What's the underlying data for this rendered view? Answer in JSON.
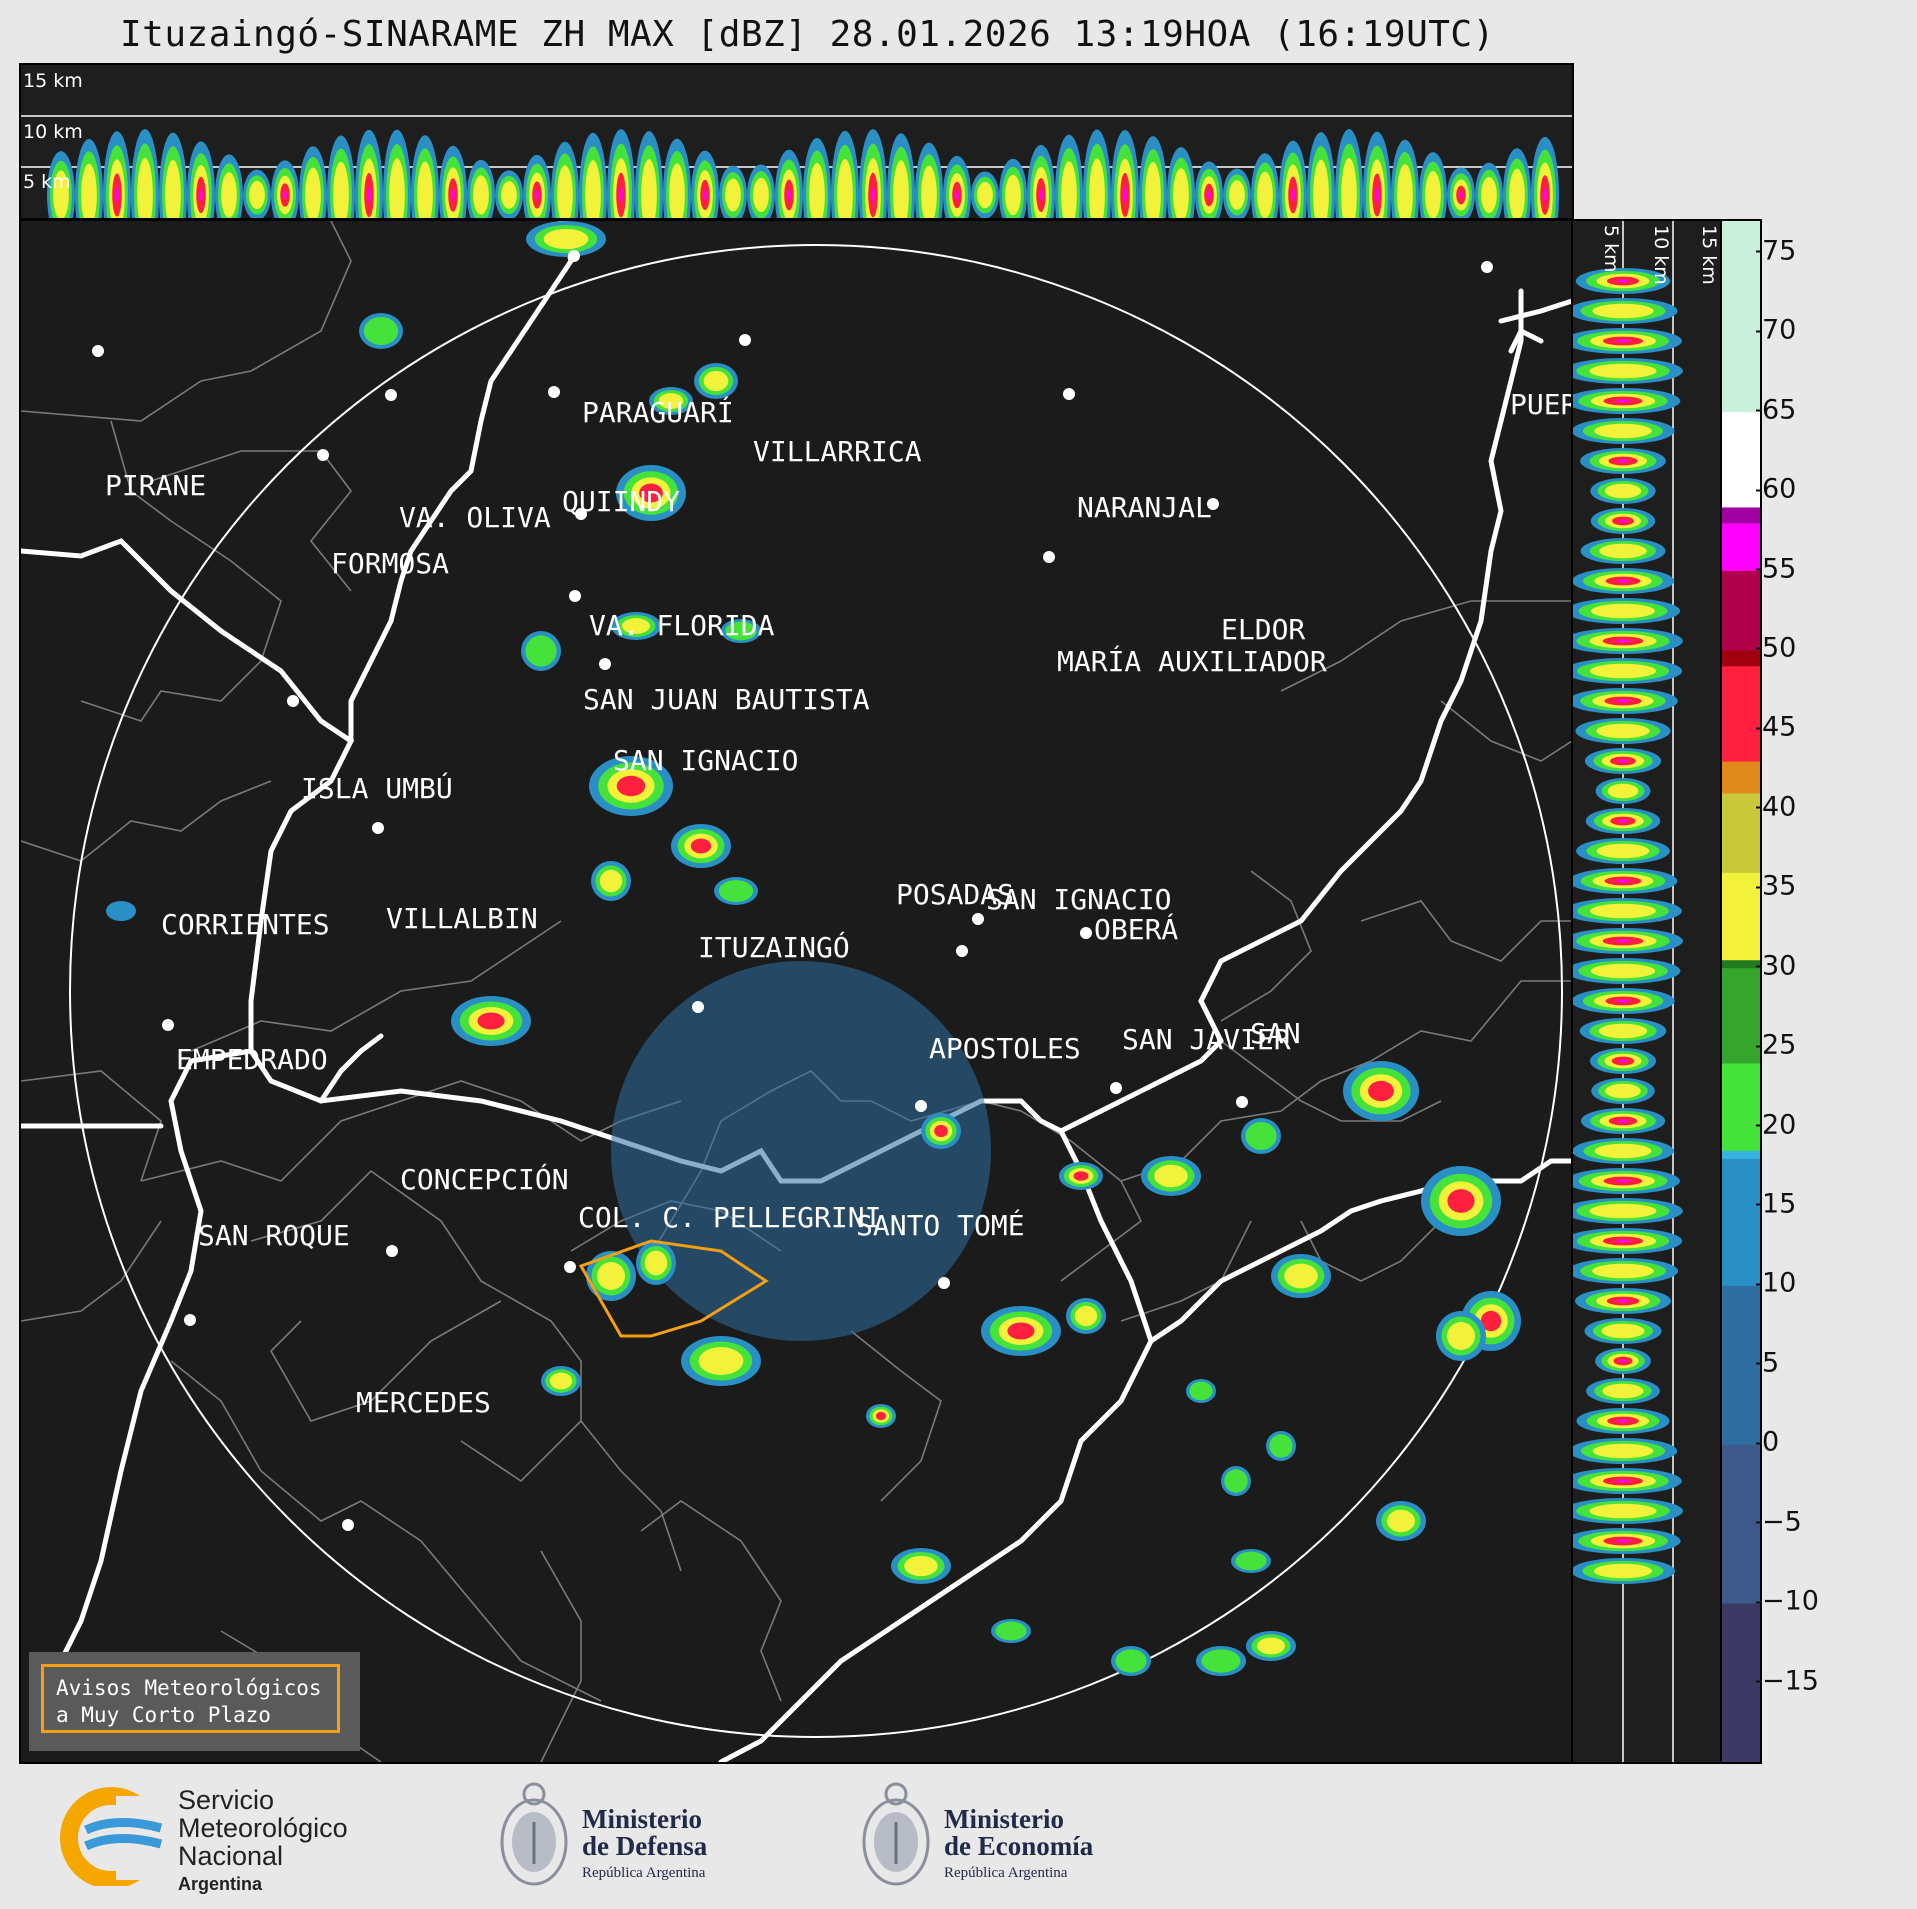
{
  "title": "Ituzaingó-SINARAME ZH MAX [dBZ] 28.01.2026 13:19HOA (16:19UTC)",
  "top_strip": {
    "height_labels": [
      "15 km",
      "10 km",
      "5 km"
    ]
  },
  "right_strip": {
    "height_labels": [
      "5 km",
      "10 km",
      "15 km"
    ]
  },
  "colorbar": {
    "unit": "dBZ",
    "ticks": [
      "75",
      "70",
      "65",
      "60",
      "55",
      "50",
      "45",
      "40",
      "35",
      "30",
      "25",
      "20",
      "15",
      "10",
      "5",
      "0",
      "−5",
      "−10",
      "−15"
    ],
    "range": [
      -20,
      77
    ],
    "stops": [
      {
        "dbz": -20,
        "color": "#3c3a64"
      },
      {
        "dbz": -10,
        "color": "#3d5a8a"
      },
      {
        "dbz": 0,
        "color": "#2e6ea0"
      },
      {
        "dbz": 10,
        "color": "#2a8fc4"
      },
      {
        "dbz": 18,
        "color": "#38b4e0"
      },
      {
        "dbz": 18.5,
        "color": "#46e23c"
      },
      {
        "dbz": 24,
        "color": "#35a52c"
      },
      {
        "dbz": 30,
        "color": "#207a1e"
      },
      {
        "dbz": 30.5,
        "color": "#f2f23a"
      },
      {
        "dbz": 36,
        "color": "#c8c83a"
      },
      {
        "dbz": 41,
        "color": "#e08a1e"
      },
      {
        "dbz": 43,
        "color": "#ff2040"
      },
      {
        "dbz": 49,
        "color": "#a00010"
      },
      {
        "dbz": 50,
        "color": "#b0004a"
      },
      {
        "dbz": 55,
        "color": "#ff00ff"
      },
      {
        "dbz": 58,
        "color": "#a000a0"
      },
      {
        "dbz": 59,
        "color": "#ffffff"
      },
      {
        "dbz": 65,
        "color": "#c9f0dc"
      },
      {
        "dbz": 77,
        "color": "#80e0c0"
      }
    ]
  },
  "cities": [
    {
      "name": "PIRANE"
    },
    {
      "name": "PARAGUARÍ"
    },
    {
      "name": "VILLARRICA"
    },
    {
      "name": "VA. OLIVA"
    },
    {
      "name": "QUIINDY"
    },
    {
      "name": "FORMOSA"
    },
    {
      "name": "NARANJAL"
    },
    {
      "name": "PUER"
    },
    {
      "name": "VA. FLORIDA"
    },
    {
      "name": "ELDOR"
    },
    {
      "name": "MARÍA AUXILIADOR"
    },
    {
      "name": "SAN JUAN BAUTISTA"
    },
    {
      "name": "SAN IGNACIO"
    },
    {
      "name": "ISLA UMBÚ"
    },
    {
      "name": "VILLALBIN"
    },
    {
      "name": "SAN IGNACIO"
    },
    {
      "name": "POSADAS"
    },
    {
      "name": "CORRIENTES"
    },
    {
      "name": "ITUZAINGÓ"
    },
    {
      "name": "OBERÁ"
    },
    {
      "name": "EMPEDRADO"
    },
    {
      "name": "APOSTOLES"
    },
    {
      "name": "SAN JAVIER"
    },
    {
      "name": "SAN"
    },
    {
      "name": "CONCEPCIÓN"
    },
    {
      "name": "COL. C. PELLEGRINI"
    },
    {
      "name": "SANTO TOMÉ"
    },
    {
      "name": "SAN ROQUE"
    },
    {
      "name": "MERCEDES"
    }
  ],
  "warning_box": {
    "line1": "Avisos Meteorológicos",
    "line2": "a Muy Corto Plazo",
    "color": "#f59f12"
  },
  "logos": {
    "smn": {
      "line1": "Servicio",
      "line2": "Meteorológico",
      "line3": "Nacional",
      "line4": "Argentina"
    },
    "defensa": {
      "line1": "Ministerio",
      "line2": "de Defensa",
      "line3": "República Argentina"
    },
    "economia": {
      "line1": "Ministerio",
      "line2": "de Economía",
      "line3": "República Argentina"
    }
  }
}
